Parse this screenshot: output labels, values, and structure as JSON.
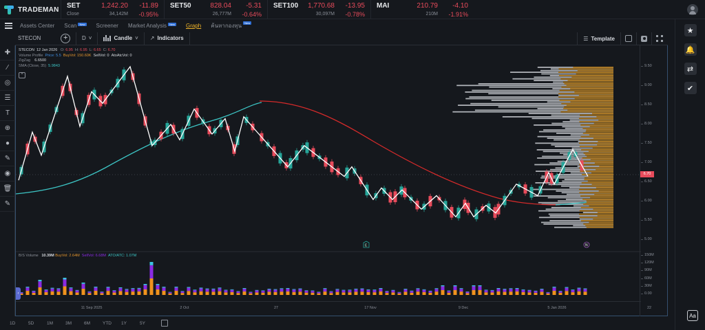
{
  "app": {
    "name": "TRADEMAN"
  },
  "tickers": [
    {
      "name": "SET",
      "price": "1,242.20",
      "change": "-11.89",
      "label": "Close",
      "volume": "34,142M",
      "pct": "-0.95%"
    },
    {
      "name": "SET50",
      "price": "828.04",
      "change": "-5.31",
      "label": "",
      "volume": "26,777M",
      "pct": "-0.64%"
    },
    {
      "name": "SET100",
      "price": "1,770.68",
      "change": "-13.95",
      "label": "",
      "volume": "30,097M",
      "pct": "-0.78%"
    },
    {
      "name": "MAI",
      "price": "210.79",
      "change": "-4.10",
      "label": "",
      "volume": "210M",
      "pct": "-1.91%"
    }
  ],
  "nav": {
    "items": [
      {
        "label": "Assets Center",
        "new": false
      },
      {
        "label": "Scan",
        "new": true
      },
      {
        "label": "Screener",
        "new": false
      },
      {
        "label": "Market Analysis",
        "new": true
      },
      {
        "label": "Graph",
        "new": false,
        "active": true
      },
      {
        "label": "ค้นหากองทุน",
        "new": true
      }
    ],
    "new_badge": "New"
  },
  "toolbar": {
    "symbol": "STECON",
    "interval": "D",
    "chart_type": "Candle",
    "indicators": "Indicators",
    "template": "Template"
  },
  "legend": {
    "symbol": "STECON",
    "date": "12 Jan 2026",
    "o_label": "O",
    "o": "6.95",
    "h_label": "H",
    "h": "6.95",
    "l_label": "L",
    "l": "6.65",
    "c_label": "C",
    "c": "6.70",
    "vp_label": "Volume Profile",
    "vp_price_label": "Price:",
    "vp_price": "5.5",
    "vp_buy_label": "BuyVol:",
    "vp_buy": "150.60K",
    "vp_sell_label": "SellVol:",
    "vp_sell": "0",
    "vp_ato_label": "AtoAtcVol:",
    "vp_ato": "0",
    "zigzag_label": "ZigZag",
    "zigzag": "6.6500",
    "sma_label": "SMA (Close, 35)",
    "sma": "5.9843",
    "collapse": "^"
  },
  "volume_legend": {
    "label": "B/S Volume",
    "total": "10.39M",
    "buy_label": "BuyVol:",
    "buy": "2.64M",
    "sell_label": "SellVol:",
    "sell": "6.68M",
    "ato_label": "ATO/ATC:",
    "ato": "1.07M"
  },
  "price_axis": [
    "9.50",
    "9.00",
    "8.50",
    "8.00",
    "7.50",
    "7.00",
    "6.50",
    "6.00",
    "5.50",
    "5.00"
  ],
  "last_price": "6.70",
  "volume_axis": [
    "150M",
    "120M",
    "90M",
    "60M",
    "30M",
    "0.00"
  ],
  "time_axis": [
    "11 Sep 2025",
    "2 Oct",
    "27",
    "17 Nov",
    "9 Dec",
    "5 Jan 2026",
    "22"
  ],
  "ranges": [
    "1D",
    "5D",
    "1M",
    "3M",
    "6M",
    "YTD",
    "1Y",
    "5Y"
  ],
  "colors": {
    "up": "#26a69a",
    "down": "#e84b5b",
    "sma": "#3cc4c4",
    "ma_long": "#d42a2a",
    "zigzag": "#ffffff",
    "vp_buy": "#b07a1f",
    "vp_sell": "#c9ccd1",
    "buyvol": "#f0921e",
    "sellvol": "#8a2be2",
    "ato": "#3cc4e0"
  },
  "events": [
    {
      "label": "E",
      "date_x": "mid-Nov"
    },
    {
      "label": "N",
      "date_x": "Jan"
    }
  ],
  "right_tools": [
    "star-icon",
    "bell-icon",
    "swap-icon",
    "checklist-icon"
  ],
  "font_button": "Aa"
}
